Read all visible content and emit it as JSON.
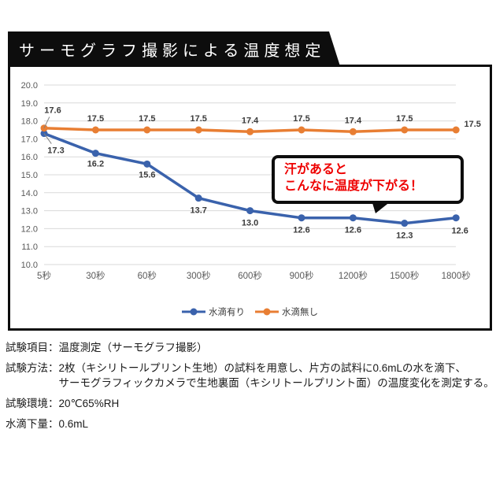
{
  "banner": {
    "title": "サーモグラフ撮影による温度想定"
  },
  "chart_data": {
    "type": "line",
    "categories": [
      "5秒",
      "30秒",
      "60秒",
      "300秒",
      "600秒",
      "900秒",
      "1200秒",
      "1500秒",
      "1800秒"
    ],
    "ylim": [
      10.0,
      20.0
    ],
    "ytick_step": 1.0,
    "grid": "horizontal",
    "legend_position": "bottom",
    "colors": {
      "grid": "#d9d9d9",
      "axis_text": "#595959",
      "data_label": "#3b3b3b"
    },
    "series": [
      {
        "name": "水滴有り",
        "color": "#3a62ac",
        "values": [
          17.3,
          16.2,
          15.6,
          13.7,
          13.0,
          12.6,
          12.6,
          12.3,
          12.6
        ],
        "label_offsets": [
          [
            15,
            25
          ],
          [
            0,
            17
          ],
          [
            0,
            17
          ],
          [
            0,
            19
          ],
          [
            0,
            19
          ],
          [
            0,
            19
          ],
          [
            0,
            19
          ],
          [
            0,
            19
          ],
          [
            5,
            20
          ]
        ]
      },
      {
        "name": "水滴無し",
        "color": "#e87e33",
        "values": [
          17.6,
          17.5,
          17.5,
          17.5,
          17.4,
          17.5,
          17.4,
          17.5,
          17.5
        ],
        "label_offsets": [
          [
            11,
            -19
          ],
          [
            0,
            -11
          ],
          [
            0,
            -11
          ],
          [
            0,
            -11
          ],
          [
            0,
            -11
          ],
          [
            0,
            -11
          ],
          [
            0,
            -11
          ],
          [
            0,
            -11
          ],
          [
            21,
            -4
          ]
        ]
      }
    ],
    "leader_lines": [
      {
        "series": 0,
        "index": 0
      },
      {
        "series": 1,
        "index": 0
      }
    ],
    "annotation": {
      "lines": [
        "汗があると",
        "こんなに温度が下がる！"
      ],
      "color": "#ee0000"
    }
  },
  "info": {
    "rows": [
      {
        "label": "試験項目：",
        "text": "温度測定（サーモグラフ撮影）"
      },
      {
        "label": "試験方法：",
        "text": "2枚（キシリトールプリント生地）の試料を用意し、片方の試料に0.6mLの水を滴下、",
        "text2": "サーモグラフィックカメラで生地裏面（キシリトールプリント面）の温度変化を測定する。"
      },
      {
        "label": "試験環境：",
        "text": "20℃65%RH"
      },
      {
        "label": "水滴下量：",
        "text": "0.6mL"
      }
    ]
  }
}
